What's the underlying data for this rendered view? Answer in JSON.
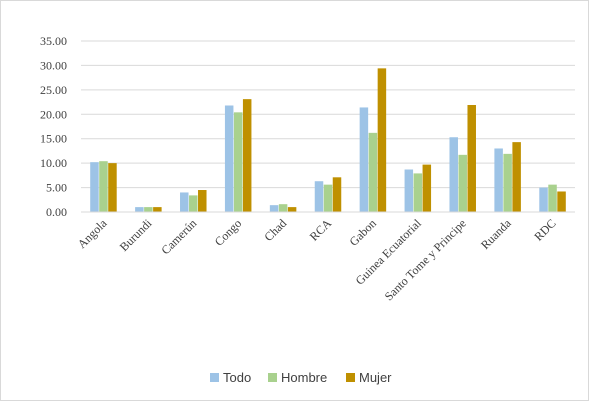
{
  "chart_data": {
    "type": "bar",
    "title": "",
    "xlabel": "",
    "ylabel": "",
    "ylim": [
      0,
      35
    ],
    "yticks": [
      "0.00",
      "5.00",
      "10.00",
      "15.00",
      "20.00",
      "25.00",
      "30.00",
      "35.00"
    ],
    "grid": true,
    "legend_position": "bottom",
    "categories": [
      "Angola",
      "Burundi",
      "Camerún",
      "Congo",
      "Chad",
      "RCA",
      "Gabon",
      "Guinea Ecuatorial",
      "Santo Tome y Principe",
      "Ruanda",
      "RDC"
    ],
    "series": [
      {
        "name": "Todo",
        "color": "#9DC3E6",
        "values": [
          10.2,
          1.0,
          4.0,
          21.8,
          1.4,
          6.3,
          21.4,
          8.7,
          15.3,
          13.0,
          5.0
        ]
      },
      {
        "name": "Hombre",
        "color": "#A9D18E",
        "values": [
          10.4,
          1.0,
          3.4,
          20.4,
          1.6,
          5.6,
          16.2,
          7.9,
          11.7,
          11.9,
          5.6
        ]
      },
      {
        "name": "Mujer",
        "color": "#BF9000",
        "values": [
          10.0,
          1.0,
          4.5,
          23.1,
          1.0,
          7.1,
          29.4,
          9.7,
          21.9,
          14.3,
          4.2
        ]
      }
    ]
  }
}
